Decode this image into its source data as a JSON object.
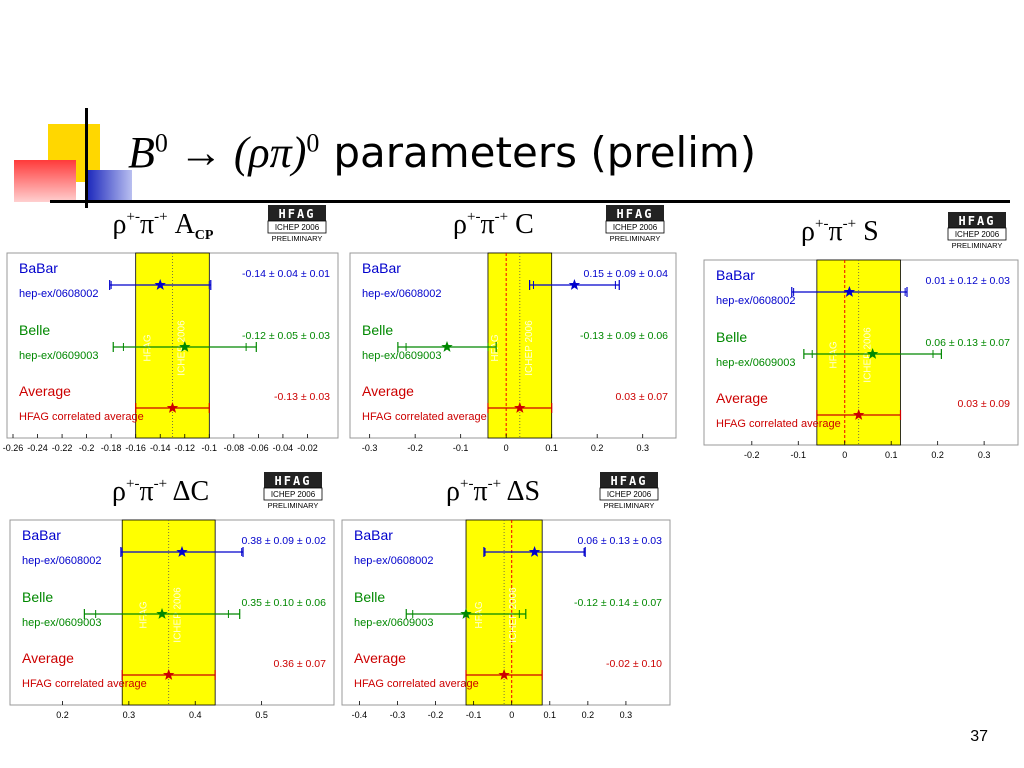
{
  "slide": {
    "title_math": "B",
    "title_math_sup": "0",
    "title_arrow": " → (ρπ)",
    "title_arrow_sup": "0",
    "title_text": "parameters (prelim)",
    "page_number": "37"
  },
  "colors": {
    "accent_yellow": "#ffd700",
    "accent_red": "#ff3333",
    "accent_blue": "#1f2bbd",
    "band_yellow": "#ffff00",
    "babar": "#0000cc",
    "belle": "#008800",
    "average": "#cc0000"
  },
  "badge": {
    "top": "HFAG",
    "mid": "ICHEP 2006",
    "bot": "PRELIMINARY"
  },
  "chart_data": [
    {
      "type": "scatter",
      "title": "ρ+-π-+ ACP",
      "title_main": "ρ",
      "title_sup1": "+-",
      "title_mid": "π",
      "title_sup2": "-+",
      "title_sym": "A",
      "title_sub": "CP",
      "xlim": [
        -0.26,
        0.0
      ],
      "xticks": [
        -0.26,
        -0.24,
        -0.22,
        -0.2,
        -0.18,
        -0.16,
        -0.14,
        -0.12,
        -0.1,
        -0.08,
        -0.06,
        -0.04,
        -0.02
      ],
      "xtick_labels": [
        "-0.26",
        "-0.24",
        "-0.22",
        "-0.2",
        "-0.18",
        "-0.16",
        "-0.14",
        "-0.12",
        "-0.1",
        "-0.08",
        "-0.06",
        "-0.04",
        "-0.02"
      ],
      "band": [
        -0.16,
        -0.1
      ],
      "series": [
        {
          "name": "BaBar",
          "sub": "hep-ex/0608002",
          "value": -0.14,
          "stat": 0.04,
          "total": 0.0412,
          "label": "-0.14 ± 0.04 ± 0.01"
        },
        {
          "name": "Belle",
          "sub": "hep-ex/0609003",
          "value": -0.12,
          "stat": 0.05,
          "total": 0.0583,
          "label": "-0.12 ± 0.05 ± 0.03"
        },
        {
          "name": "Average",
          "sub": "HFAG correlated average",
          "value": -0.13,
          "stat": 0.03,
          "total": 0.03,
          "label": "-0.13 ± 0.03"
        }
      ],
      "watermark": [
        "HFAG",
        "ICHEP 2006"
      ]
    },
    {
      "type": "scatter",
      "title": "ρ+-π-+ C",
      "title_main": "ρ",
      "title_sup1": "+-",
      "title_mid": "π",
      "title_sup2": "-+",
      "title_sym": "C",
      "title_sub": "",
      "xlim": [
        -0.33,
        0.36
      ],
      "xticks": [
        -0.3,
        -0.2,
        -0.1,
        0,
        0.1,
        0.2,
        0.3
      ],
      "xtick_labels": [
        "-0.3",
        "-0.2",
        "-0.1",
        "0",
        "0.1",
        "0.2",
        "0.3"
      ],
      "band": [
        -0.04,
        0.1
      ],
      "series": [
        {
          "name": "BaBar",
          "sub": "hep-ex/0608002",
          "value": 0.15,
          "stat": 0.09,
          "total": 0.0985,
          "label": "0.15 ± 0.09 ± 0.04"
        },
        {
          "name": "Belle",
          "sub": "hep-ex/0609003",
          "value": -0.13,
          "stat": 0.09,
          "total": 0.108,
          "label": "-0.13 ± 0.09 ± 0.06"
        },
        {
          "name": "Average",
          "sub": "HFAG correlated average",
          "value": 0.03,
          "stat": 0.07,
          "total": 0.07,
          "label": "0.03 ± 0.07"
        }
      ],
      "watermark": [
        "HFAG",
        "ICHEP 2006"
      ]
    },
    {
      "type": "scatter",
      "title": "ρ+-π-+ S",
      "title_main": "ρ",
      "title_sup1": "+-",
      "title_mid": "π",
      "title_sup2": "-+",
      "title_sym": "S",
      "title_sub": "",
      "xlim": [
        -0.29,
        0.36
      ],
      "xticks": [
        -0.2,
        -0.1,
        0,
        0.1,
        0.2,
        0.3
      ],
      "xtick_labels": [
        "-0.2",
        "-0.1",
        "0",
        "0.1",
        "0.2",
        "0.3"
      ],
      "band": [
        -0.06,
        0.12
      ],
      "series": [
        {
          "name": "BaBar",
          "sub": "hep-ex/0608002",
          "value": 0.01,
          "stat": 0.12,
          "total": 0.124,
          "label": "0.01 ± 0.12 ± 0.03"
        },
        {
          "name": "Belle",
          "sub": "hep-ex/0609003",
          "value": 0.06,
          "stat": 0.13,
          "total": 0.148,
          "label": "0.06 ± 0.13 ± 0.07"
        },
        {
          "name": "Average",
          "sub": "HFAG correlated average",
          "value": 0.03,
          "stat": 0.09,
          "total": 0.09,
          "label": "0.03 ± 0.09"
        }
      ],
      "watermark": [
        "HFAG",
        "ICHEP 2006"
      ]
    },
    {
      "type": "scatter",
      "title": "ρ+-π-+ ΔC",
      "title_main": "ρ",
      "title_sup1": "+-",
      "title_mid": "π",
      "title_sup2": "-+",
      "title_sym": "ΔC",
      "title_sub": "",
      "xlim": [
        0.13,
        0.6
      ],
      "xticks": [
        0.2,
        0.3,
        0.4,
        0.5
      ],
      "xtick_labels": [
        "0.2",
        "0.3",
        "0.4",
        "0.5"
      ],
      "band": [
        0.29,
        0.43
      ],
      "series": [
        {
          "name": "BaBar",
          "sub": "hep-ex/0608002",
          "value": 0.38,
          "stat": 0.09,
          "total": 0.092,
          "label": "0.38 ± 0.09 ± 0.02"
        },
        {
          "name": "Belle",
          "sub": "hep-ex/0609003",
          "value": 0.35,
          "stat": 0.1,
          "total": 0.117,
          "label": "0.35 ± 0.10 ± 0.06"
        },
        {
          "name": "Average",
          "sub": "HFAG correlated average",
          "value": 0.36,
          "stat": 0.07,
          "total": 0.07,
          "label": "0.36 ± 0.07"
        }
      ],
      "watermark": [
        "HFAG",
        "ICHEP 2006"
      ]
    },
    {
      "type": "scatter",
      "title": "ρ+-π-+ ΔS",
      "title_main": "ρ",
      "title_sup1": "+-",
      "title_mid": "π",
      "title_sup2": "-+",
      "title_sym": "ΔS",
      "title_sub": "",
      "xlim": [
        -0.43,
        0.4
      ],
      "xticks": [
        -0.4,
        -0.3,
        -0.2,
        -0.1,
        0,
        0.1,
        0.2,
        0.3
      ],
      "xtick_labels": [
        "-0.4",
        "-0.3",
        "-0.2",
        "-0.1",
        "0",
        "0.1",
        "0.2",
        "0.3"
      ],
      "band": [
        -0.12,
        0.08
      ],
      "series": [
        {
          "name": "BaBar",
          "sub": "hep-ex/0608002",
          "value": 0.06,
          "stat": 0.13,
          "total": 0.133,
          "label": "0.06 ± 0.13 ± 0.03"
        },
        {
          "name": "Belle",
          "sub": "hep-ex/0609003",
          "value": -0.12,
          "stat": 0.14,
          "total": 0.157,
          "label": "-0.12 ± 0.14 ± 0.07"
        },
        {
          "name": "Average",
          "sub": "HFAG correlated average",
          "value": -0.02,
          "stat": 0.1,
          "total": 0.1,
          "label": "-0.02 ± 0.10"
        }
      ],
      "watermark": [
        "HFAG",
        "ICHEP 2006"
      ]
    }
  ]
}
